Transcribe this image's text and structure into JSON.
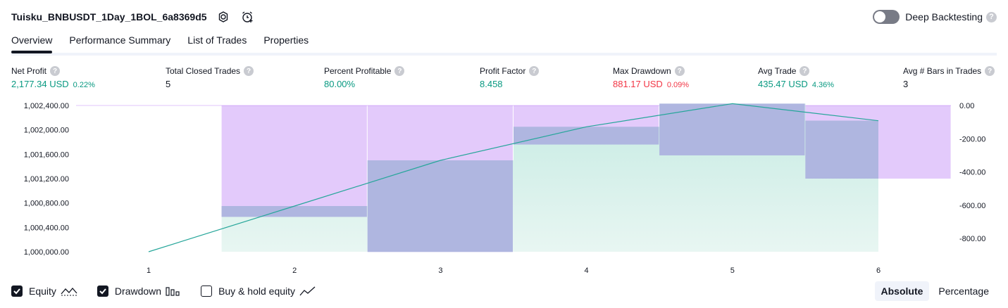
{
  "header": {
    "title": "Tuisku_BNBUSDT_1Day_1BOL_6a8369d5",
    "deep_backtesting_label": "Deep Backtesting",
    "help_glyph": "?"
  },
  "tabs": [
    {
      "label": "Overview"
    },
    {
      "label": "Performance Summary"
    },
    {
      "label": "List of Trades"
    },
    {
      "label": "Properties"
    }
  ],
  "metrics": [
    {
      "label": "Net Profit",
      "value": "2,177.34 USD",
      "pct": "0.22%",
      "color": "#089981"
    },
    {
      "label": "Total Closed Trades",
      "value": "5",
      "pct": "",
      "color": "#131722"
    },
    {
      "label": "Percent Profitable",
      "value": "80.00%",
      "pct": "",
      "color": "#089981"
    },
    {
      "label": "Profit Factor",
      "value": "8.458",
      "pct": "",
      "color": "#089981"
    },
    {
      "label": "Max Drawdown",
      "value": "881.17 USD",
      "pct": "0.09%",
      "color": "#f23645"
    },
    {
      "label": "Avg Trade",
      "value": "435.47 USD",
      "pct": "4.36%",
      "color": "#089981"
    },
    {
      "label": "Avg # Bars in Trades",
      "value": "3",
      "pct": "",
      "color": "#131722"
    }
  ],
  "chart_data": {
    "type": "area",
    "x": [
      1,
      2,
      3,
      4,
      5,
      6
    ],
    "x_tick_labels": [
      "1",
      "2",
      "3",
      "4",
      "5",
      "6"
    ],
    "left_axis": {
      "ticks": [
        1000000,
        1000400,
        1000800,
        1001200,
        1001600,
        1002000,
        1002400
      ],
      "tick_labels": [
        "1,000,000.00",
        "1,000,400.00",
        "1,000,800.00",
        "1,001,200.00",
        "1,001,600.00",
        "1,002,000.00",
        "1,002,400.00"
      ],
      "range": [
        1000000,
        1002400
      ]
    },
    "right_axis": {
      "ticks": [
        0,
        -200,
        -400,
        -600,
        -800
      ],
      "tick_labels": [
        "0.00",
        "-200.00",
        "-400.00",
        "-600.00",
        "-800.00"
      ],
      "range": [
        -880,
        0
      ]
    },
    "equity": {
      "x": [
        1,
        2,
        3,
        4,
        5,
        6
      ],
      "values": [
        1000000,
        1000750,
        1001500,
        1002050,
        1002430,
        1002150
      ],
      "color": "#26a69a"
    },
    "drawdown": {
      "x": [
        1,
        2,
        3,
        4,
        5,
        6
      ],
      "values": [
        0,
        -670,
        -881,
        -235,
        -300,
        -440
      ],
      "color": "#e1c6fb",
      "overlap_color": "#afb6e0"
    },
    "grid": false
  },
  "footer": {
    "equity_label": "Equity",
    "drawdown_label": "Drawdown",
    "buyhold_label": "Buy & hold equity",
    "equity_checked": true,
    "drawdown_checked": true,
    "buyhold_checked": false,
    "absolute_label": "Absolute",
    "percentage_label": "Percentage",
    "active_mode": "Absolute"
  }
}
